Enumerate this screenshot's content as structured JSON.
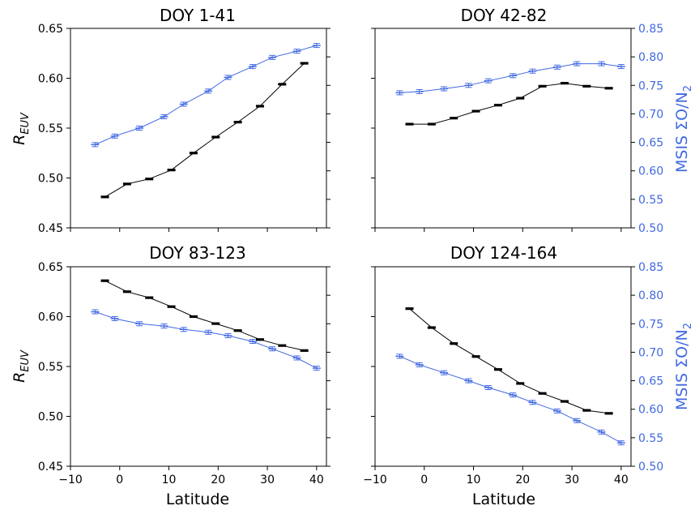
{
  "figure": {
    "shared_xlabel": "Latitude",
    "left_ylabel": "R",
    "left_ylabel_sub": "EUV",
    "right_ylabel": "MSIS ΣO/N",
    "right_ylabel_sub": "2",
    "colors": {
      "black_series": "#000000",
      "blue_series": "#4169e1",
      "right_axis": "#4169e1"
    }
  },
  "chart_data": [
    {
      "type": "line",
      "title": "DOY 1-41",
      "xlim": [
        -10,
        42
      ],
      "xticks": [
        -10,
        0,
        10,
        20,
        30,
        40
      ],
      "ylim": [
        0.45,
        0.65
      ],
      "yticks": [
        0.45,
        0.5,
        0.55,
        0.6,
        0.65
      ],
      "ylim_right": [
        0.5,
        0.85
      ],
      "yticks_right": [
        0.5,
        0.55,
        0.6,
        0.65,
        0.7,
        0.75,
        0.8,
        0.85
      ],
      "series": [
        {
          "axis": "left",
          "color": "#000000",
          "x": [
            -3,
            1.5,
            6,
            10.5,
            15,
            19.5,
            24,
            28.5,
            33,
            37.5
          ],
          "y": [
            0.481,
            0.494,
            0.499,
            0.508,
            0.525,
            0.541,
            0.556,
            0.572,
            0.594,
            0.615
          ]
        },
        {
          "axis": "right",
          "color": "#4169e1",
          "x": [
            -5,
            -1,
            4,
            9,
            13,
            18,
            22,
            27,
            31,
            36,
            40
          ],
          "y": [
            0.646,
            0.661,
            0.675,
            0.695,
            0.717,
            0.74,
            0.764,
            0.783,
            0.799,
            0.81,
            0.82
          ]
        }
      ]
    },
    {
      "type": "line",
      "title": "DOY 42-82",
      "xlim": [
        -10,
        42
      ],
      "xticks": [
        -10,
        0,
        10,
        20,
        30,
        40
      ],
      "ylim": [
        0.45,
        0.65
      ],
      "yticks": [
        0.45,
        0.5,
        0.55,
        0.6,
        0.65
      ],
      "ylim_right": [
        0.5,
        0.85
      ],
      "yticks_right": [
        0.5,
        0.55,
        0.6,
        0.65,
        0.7,
        0.75,
        0.8,
        0.85
      ],
      "series": [
        {
          "axis": "left",
          "color": "#000000",
          "x": [
            -3,
            1.5,
            6,
            10.5,
            15,
            19.5,
            24,
            28.5,
            33,
            37.5
          ],
          "y": [
            0.554,
            0.554,
            0.56,
            0.567,
            0.573,
            0.58,
            0.592,
            0.595,
            0.592,
            0.59
          ]
        },
        {
          "axis": "right",
          "color": "#4169e1",
          "x": [
            -5,
            -1,
            4,
            9,
            13,
            18,
            22,
            27,
            31,
            36,
            40
          ],
          "y": [
            0.737,
            0.739,
            0.744,
            0.75,
            0.758,
            0.767,
            0.775,
            0.782,
            0.788,
            0.788,
            0.783
          ]
        }
      ]
    },
    {
      "type": "line",
      "title": "DOY 83-123",
      "xlim": [
        -10,
        42
      ],
      "xticks": [
        -10,
        0,
        10,
        20,
        30,
        40
      ],
      "ylim": [
        0.45,
        0.65
      ],
      "yticks": [
        0.45,
        0.5,
        0.55,
        0.6,
        0.65
      ],
      "ylim_right": [
        0.5,
        0.85
      ],
      "yticks_right": [
        0.5,
        0.55,
        0.6,
        0.65,
        0.7,
        0.75,
        0.8,
        0.85
      ],
      "series": [
        {
          "axis": "left",
          "color": "#000000",
          "x": [
            -3,
            1.5,
            6,
            10.5,
            15,
            19.5,
            24,
            28.5,
            33,
            37.5
          ],
          "y": [
            0.636,
            0.625,
            0.619,
            0.61,
            0.6,
            0.593,
            0.586,
            0.577,
            0.571,
            0.566
          ]
        },
        {
          "axis": "right",
          "color": "#4169e1",
          "x": [
            -5,
            -1,
            4,
            9,
            13,
            18,
            22,
            27,
            31,
            36,
            40
          ],
          "y": [
            0.771,
            0.759,
            0.75,
            0.746,
            0.74,
            0.735,
            0.729,
            0.719,
            0.706,
            0.69,
            0.672
          ]
        }
      ]
    },
    {
      "type": "line",
      "title": "DOY 124-164",
      "xlim": [
        -10,
        42
      ],
      "xticks": [
        -10,
        0,
        10,
        20,
        30,
        40
      ],
      "ylim": [
        0.45,
        0.65
      ],
      "yticks": [
        0.45,
        0.5,
        0.55,
        0.6,
        0.65
      ],
      "ylim_right": [
        0.5,
        0.85
      ],
      "yticks_right": [
        0.5,
        0.55,
        0.6,
        0.65,
        0.7,
        0.75,
        0.8,
        0.85
      ],
      "series": [
        {
          "axis": "left",
          "color": "#000000",
          "x": [
            -3,
            1.5,
            6,
            10.5,
            15,
            19.5,
            24,
            28.5,
            33,
            37.5
          ],
          "y": [
            0.608,
            0.589,
            0.573,
            0.56,
            0.547,
            0.533,
            0.523,
            0.515,
            0.506,
            0.503
          ]
        },
        {
          "axis": "right",
          "color": "#4169e1",
          "x": [
            -5,
            -1,
            4,
            9,
            13,
            18,
            22,
            27,
            31,
            36,
            40
          ],
          "y": [
            0.693,
            0.678,
            0.664,
            0.65,
            0.638,
            0.625,
            0.612,
            0.597,
            0.58,
            0.56,
            0.541
          ]
        }
      ]
    }
  ]
}
